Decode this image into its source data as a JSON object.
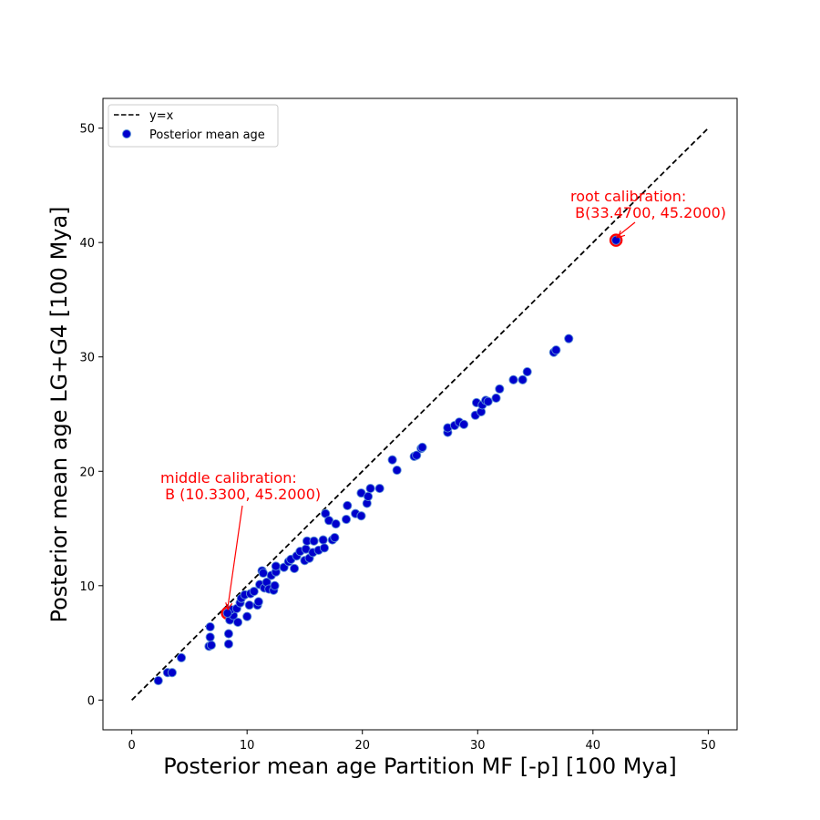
{
  "chart_data": {
    "type": "scatter",
    "title": "",
    "xlabel": "Posterior mean age Partition MF [-p] [100 Mya]",
    "ylabel": "Posterior mean age LG+G4 [100 Mya]",
    "xlim": [
      -2.5,
      52.5
    ],
    "ylim": [
      -2.6,
      52.6
    ],
    "xticks": [
      0,
      10,
      20,
      30,
      40,
      50
    ],
    "yticks": [
      0,
      10,
      20,
      30,
      40,
      50
    ],
    "grid": false,
    "legend_position": "top-left",
    "colors": {
      "point_fill": "#0000cc",
      "point_edge": "#5a8fd6",
      "reference_line": "#000000",
      "annotation": "#ff0000"
    },
    "series": [
      {
        "name": "y=x",
        "kind": "line",
        "style": "dashed",
        "x": [
          0,
          50
        ],
        "y": [
          0,
          50
        ]
      },
      {
        "name": "Posterior mean age",
        "kind": "scatter",
        "points": [
          [
            2.3,
            1.7
          ],
          [
            3.1,
            2.4
          ],
          [
            3.5,
            2.4
          ],
          [
            4.3,
            3.7
          ],
          [
            6.7,
            4.7
          ],
          [
            6.9,
            4.8
          ],
          [
            6.8,
            5.5
          ],
          [
            6.8,
            6.4
          ],
          [
            8.4,
            4.9
          ],
          [
            8.4,
            5.8
          ],
          [
            8.5,
            7.0
          ],
          [
            8.8,
            7.4
          ],
          [
            8.6,
            7.9
          ],
          [
            9.2,
            6.8
          ],
          [
            9.1,
            8.0
          ],
          [
            9.4,
            8.5
          ],
          [
            9.5,
            8.9
          ],
          [
            9.8,
            9.2
          ],
          [
            10.0,
            7.3
          ],
          [
            10.2,
            8.3
          ],
          [
            10.3,
            9.3
          ],
          [
            10.6,
            9.5
          ],
          [
            10.9,
            8.3
          ],
          [
            11.0,
            8.6
          ],
          [
            11.1,
            10.1
          ],
          [
            11.3,
            11.3
          ],
          [
            11.4,
            11.1
          ],
          [
            11.5,
            9.8
          ],
          [
            11.7,
            10.3
          ],
          [
            11.9,
            9.7
          ],
          [
            12.1,
            10.9
          ],
          [
            12.3,
            9.6
          ],
          [
            12.4,
            10.0
          ],
          [
            12.5,
            11.2
          ],
          [
            12.5,
            11.7
          ],
          [
            13.2,
            11.6
          ],
          [
            13.6,
            12.1
          ],
          [
            13.8,
            12.3
          ],
          [
            14.1,
            11.5
          ],
          [
            14.3,
            12.6
          ],
          [
            14.6,
            13.0
          ],
          [
            15.0,
            12.2
          ],
          [
            15.1,
            13.2
          ],
          [
            15.2,
            13.9
          ],
          [
            15.4,
            12.4
          ],
          [
            15.7,
            12.9
          ],
          [
            15.8,
            13.9
          ],
          [
            16.2,
            13.1
          ],
          [
            16.6,
            14.0
          ],
          [
            16.7,
            13.3
          ],
          [
            16.8,
            16.3
          ],
          [
            17.1,
            15.7
          ],
          [
            17.4,
            14.0
          ],
          [
            17.6,
            14.2
          ],
          [
            17.7,
            15.4
          ],
          [
            18.6,
            15.8
          ],
          [
            18.7,
            17.0
          ],
          [
            19.4,
            16.3
          ],
          [
            19.9,
            16.1
          ],
          [
            19.9,
            18.1
          ],
          [
            20.4,
            17.2
          ],
          [
            20.5,
            17.8
          ],
          [
            20.7,
            18.5
          ],
          [
            21.5,
            18.5
          ],
          [
            22.6,
            21.0
          ],
          [
            23.0,
            20.1
          ],
          [
            24.5,
            21.3
          ],
          [
            24.7,
            21.4
          ],
          [
            25.1,
            22.0
          ],
          [
            25.2,
            22.1
          ],
          [
            27.4,
            23.4
          ],
          [
            27.4,
            23.8
          ],
          [
            28.0,
            24.0
          ],
          [
            28.4,
            24.3
          ],
          [
            28.8,
            24.1
          ],
          [
            29.8,
            24.9
          ],
          [
            29.9,
            26.0
          ],
          [
            30.3,
            25.2
          ],
          [
            30.4,
            25.8
          ],
          [
            30.7,
            26.2
          ],
          [
            30.9,
            26.1
          ],
          [
            31.6,
            26.4
          ],
          [
            31.9,
            27.2
          ],
          [
            33.1,
            28.0
          ],
          [
            33.9,
            28.0
          ],
          [
            34.3,
            28.7
          ],
          [
            36.6,
            30.4
          ],
          [
            36.8,
            30.6
          ],
          [
            37.9,
            31.6
          ],
          [
            8.3,
            7.6
          ],
          [
            42.0,
            40.2
          ]
        ]
      }
    ],
    "highlighted_points": [
      {
        "x": 8.3,
        "y": 7.6,
        "text_x": 2.4,
        "text_y": 18.6
      },
      {
        "x": 42.0,
        "y": 40.2,
        "text_x": 38.0,
        "text_y": 42.4
      }
    ],
    "legend": {
      "line_label": "y=x",
      "points_label": "Posterior mean age"
    },
    "annotations": {
      "middle_line1": "middle calibration:",
      "middle_line2": " B (10.3300, 45.2000)",
      "root_line1": "root calibration:",
      "root_line2": " B(33.4700, 45.2000)"
    }
  }
}
